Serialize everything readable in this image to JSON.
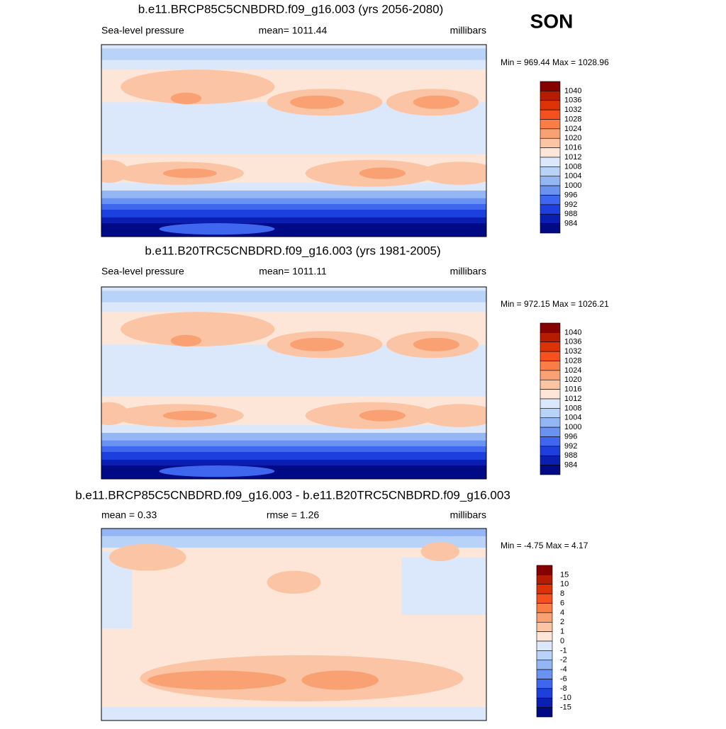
{
  "season": "SON",
  "panels": [
    {
      "title": "b.e11.BRCP85C5CNBDRD.f09_g16.003 (yrs 2056-2080)",
      "left": "Sea-level pressure",
      "center": "mean= 1011.44",
      "right": "millibars",
      "minmax": "Min = 969.44 Max = 1028.96",
      "colorbar": {
        "labels": [
          "1040",
          "1036",
          "1032",
          "1028",
          "1024",
          "1020",
          "1016",
          "1012",
          "1008",
          "1004",
          "1000",
          "996",
          "992",
          "988",
          "984"
        ],
        "colors": [
          "#870000",
          "#b51c00",
          "#dc3205",
          "#f4511e",
          "#fa7d45",
          "#f9a173",
          "#fbc4a4",
          "#fde6d8",
          "#dbe8fb",
          "#b9d2f8",
          "#94b6f5",
          "#6a93f1",
          "#3e66ee",
          "#1d3fdd",
          "#0a1eb2",
          "#000a85"
        ]
      }
    },
    {
      "title": "b.e11.B20TRC5CNBDRD.f09_g16.003 (yrs 1981-2005)",
      "left": "Sea-level pressure",
      "center": "mean= 1011.11",
      "right": "millibars",
      "minmax": "Min = 972.15 Max = 1026.21",
      "colorbar": {
        "labels": [
          "1040",
          "1036",
          "1032",
          "1028",
          "1024",
          "1020",
          "1016",
          "1012",
          "1008",
          "1004",
          "1000",
          "996",
          "992",
          "988",
          "984"
        ],
        "colors": [
          "#870000",
          "#b51c00",
          "#dc3205",
          "#f4511e",
          "#fa7d45",
          "#f9a173",
          "#fbc4a4",
          "#fde6d8",
          "#dbe8fb",
          "#b9d2f8",
          "#94b6f5",
          "#6a93f1",
          "#3e66ee",
          "#1d3fdd",
          "#0a1eb2",
          "#000a85"
        ]
      }
    },
    {
      "title": "b.e11.BRCP85C5CNBDRD.f09_g16.003 - b.e11.B20TRC5CNBDRD.f09_g16.003",
      "left": "mean =   0.33",
      "center": "rmse =   1.26",
      "right": "millibars",
      "minmax": "Min =  -4.75 Max =   4.17",
      "colorbar": {
        "labels": [
          "15",
          "10",
          "8",
          "6",
          "4",
          "2",
          "1",
          "0",
          "-1",
          "-2",
          "-4",
          "-6",
          "-8",
          "-10",
          "-15"
        ],
        "colors": [
          "#870000",
          "#b51c00",
          "#dc3205",
          "#f4511e",
          "#fa7d45",
          "#f9a173",
          "#fbc4a4",
          "#fde6d8",
          "#dbe8fb",
          "#b9d2f8",
          "#94b6f5",
          "#6a93f1",
          "#3e66ee",
          "#1d3fdd",
          "#0a1eb2",
          "#000a85"
        ]
      }
    }
  ]
}
